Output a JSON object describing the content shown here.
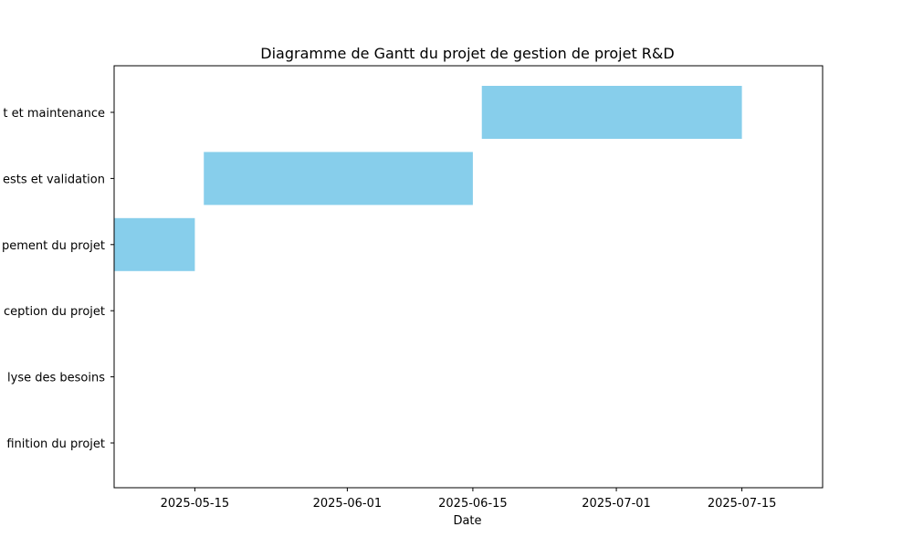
{
  "chart_data": {
    "type": "bar",
    "orientation": "horizontal",
    "title": "Diagramme de Gantt du projet de gestion de projet R&D",
    "xlabel": "Date",
    "ylabel": "",
    "x_type": "date",
    "xlim": [
      "2025-05-06",
      "2025-07-24"
    ],
    "xticks": [
      "2025-05-15",
      "2025-06-01",
      "2025-06-15",
      "2025-07-01",
      "2025-07-15"
    ],
    "xtick_labels": [
      "2025-05-15",
      "2025-06-01",
      "2025-06-15",
      "2025-07-01",
      "2025-07-15"
    ],
    "grid": false,
    "tasks": [
      {
        "label": "finition du projet",
        "start": null,
        "end": null
      },
      {
        "label": "lyse des besoins",
        "start": null,
        "end": null
      },
      {
        "label": "ception du projet",
        "start": null,
        "end": null
      },
      {
        "label": "pement du projet",
        "start": "2025-05-06",
        "end": "2025-05-15"
      },
      {
        "label": "ests et validation",
        "start": "2025-05-16",
        "end": "2025-06-15"
      },
      {
        "label": "t et maintenance",
        "start": "2025-06-16",
        "end": "2025-07-15"
      }
    ],
    "bar_color": "#87ceeb"
  }
}
